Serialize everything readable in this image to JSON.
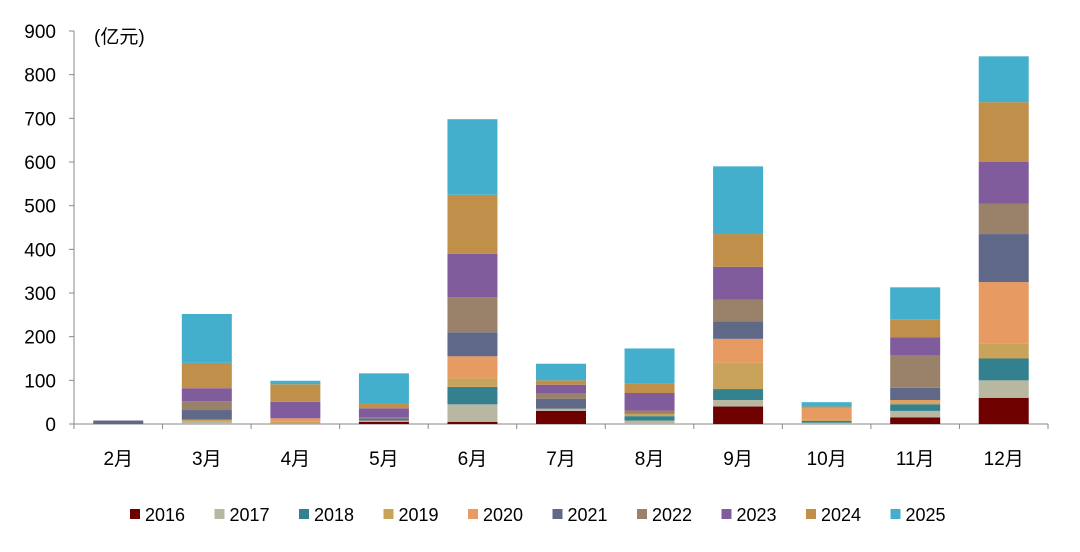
{
  "chart_data": {
    "type": "bar",
    "stacked": true,
    "unit_label": "(亿元)",
    "ylim": [
      0,
      900
    ],
    "yticks": [
      "0",
      "100",
      "200",
      "300",
      "400",
      "500",
      "600",
      "700",
      "800",
      "900"
    ],
    "categories": [
      "2月",
      "3月",
      "4月",
      "5月",
      "6月",
      "7月",
      "8月",
      "9月",
      "10月",
      "11月",
      "12月"
    ],
    "legend_position": "bottom",
    "series": [
      {
        "name": "2016",
        "color": "#6e0000",
        "values": [
          0,
          0,
          0,
          5,
          5,
          30,
          0,
          40,
          0,
          15,
          60
        ]
      },
      {
        "name": "2017",
        "color": "#b8b8a2",
        "values": [
          0,
          5,
          0,
          3,
          40,
          5,
          8,
          15,
          3,
          15,
          40
        ]
      },
      {
        "name": "2018",
        "color": "#33808f",
        "values": [
          0,
          0,
          0,
          0,
          40,
          0,
          10,
          25,
          4,
          15,
          50
        ]
      },
      {
        "name": "2019",
        "color": "#c9a35a",
        "values": [
          0,
          5,
          5,
          0,
          20,
          0,
          5,
          60,
          3,
          5,
          35
        ]
      },
      {
        "name": "2020",
        "color": "#e89a63",
        "values": [
          0,
          0,
          8,
          0,
          50,
          0,
          0,
          55,
          27,
          5,
          140
        ]
      },
      {
        "name": "2021",
        "color": "#606888",
        "values": [
          8,
          22,
          0,
          5,
          55,
          23,
          0,
          40,
          0,
          28,
          110
        ]
      },
      {
        "name": "2022",
        "color": "#9a8169",
        "values": [
          0,
          20,
          0,
          3,
          80,
          12,
          8,
          50,
          0,
          75,
          70
        ]
      },
      {
        "name": "2023",
        "color": "#805c9d",
        "values": [
          0,
          30,
          38,
          20,
          100,
          20,
          40,
          75,
          0,
          40,
          95
        ]
      },
      {
        "name": "2024",
        "color": "#c0904a",
        "values": [
          0,
          58,
          40,
          10,
          135,
          10,
          22,
          75,
          3,
          42,
          137
        ]
      },
      {
        "name": "2025",
        "color": "#43afcc",
        "values": [
          0,
          112,
          8,
          70,
          173,
          38,
          80,
          155,
          10,
          73,
          105
        ]
      }
    ]
  }
}
